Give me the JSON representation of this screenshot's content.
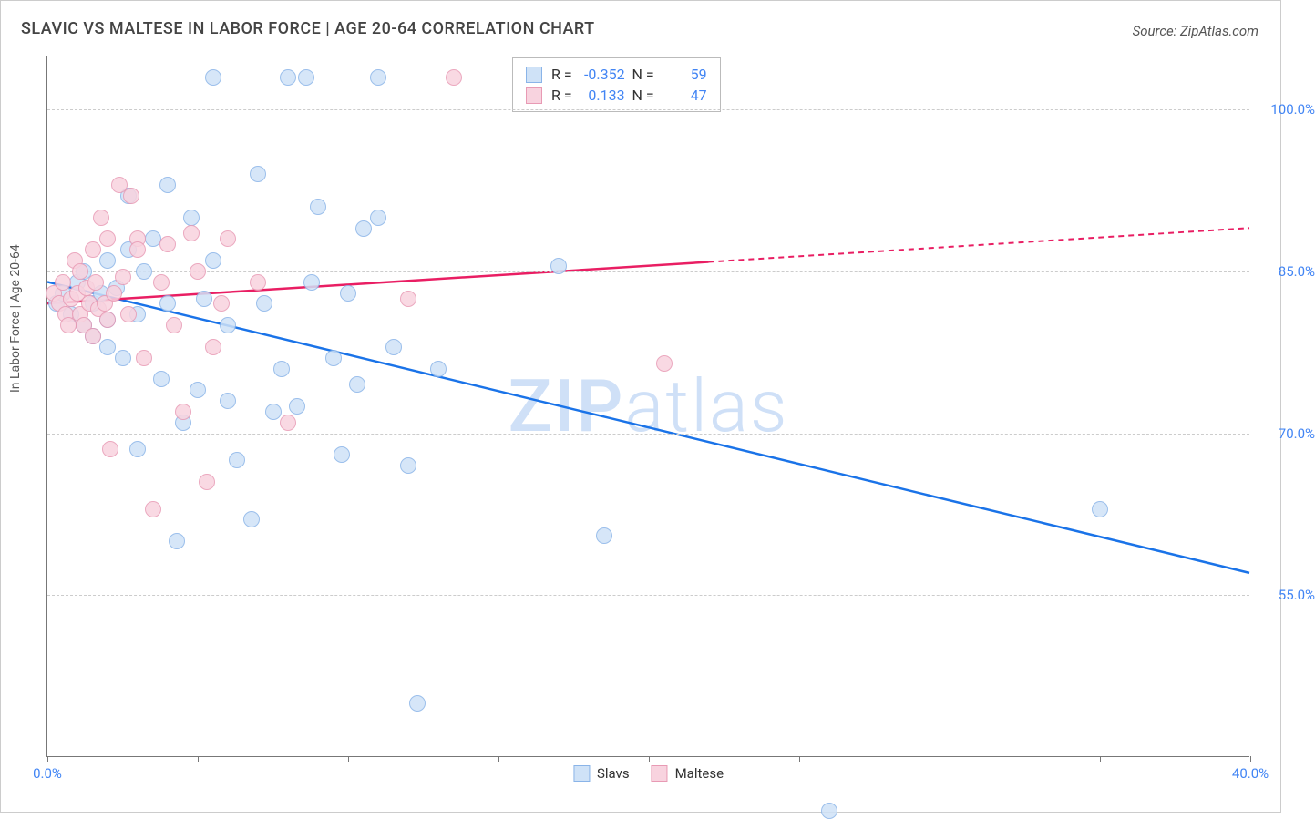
{
  "title": "SLAVIC VS MALTESE IN LABOR FORCE | AGE 20-64 CORRELATION CHART",
  "source": "Source: ZipAtlas.com",
  "y_axis_label": "In Labor Force | Age 20-64",
  "watermark_a": "ZIP",
  "watermark_b": "atlas",
  "chart": {
    "type": "scatter",
    "x_range": [
      0,
      40
    ],
    "y_range": [
      40,
      105
    ],
    "y_ticks": [
      55,
      70,
      85,
      100
    ],
    "y_tick_labels": [
      "55.0%",
      "70.0%",
      "85.0%",
      "100.0%"
    ],
    "x_ticks": [
      0,
      5,
      10,
      15,
      20,
      25,
      30,
      35,
      40
    ],
    "x_tick_labels": {
      "0": "0.0%",
      "40": "40.0%"
    },
    "point_radius": 9,
    "slav_fill": "#cfe2f7",
    "slav_stroke": "#8ab4e8",
    "maltese_fill": "#f8d3df",
    "maltese_stroke": "#e89ab4",
    "slav_line_color": "#1a73e8",
    "maltese_line_color": "#e91e63",
    "grid_color": "#d0d0d0",
    "background": "#ffffff",
    "series": [
      {
        "name": "Slavs",
        "color_key": "slav",
        "r_value": "-0.352",
        "n_value": "59",
        "trend": {
          "x1": 0,
          "y1": 84,
          "x2": 40,
          "y2": 57,
          "solid_until_x": 40
        },
        "points": [
          [
            0.3,
            82
          ],
          [
            0.5,
            83
          ],
          [
            0.8,
            81
          ],
          [
            1.0,
            84
          ],
          [
            1.2,
            80
          ],
          [
            1.2,
            85
          ],
          [
            1.5,
            82
          ],
          [
            1.5,
            79
          ],
          [
            1.8,
            83
          ],
          [
            2.0,
            86
          ],
          [
            2.0,
            78
          ],
          [
            2.0,
            80.5
          ],
          [
            2.3,
            83.5
          ],
          [
            2.5,
            77
          ],
          [
            2.7,
            92
          ],
          [
            2.7,
            87
          ],
          [
            3.0,
            68.5
          ],
          [
            3.0,
            81
          ],
          [
            3.2,
            85
          ],
          [
            3.5,
            88
          ],
          [
            3.8,
            75
          ],
          [
            4.0,
            93
          ],
          [
            4.0,
            82
          ],
          [
            4.3,
            60
          ],
          [
            4.5,
            71
          ],
          [
            4.8,
            90
          ],
          [
            5.0,
            74
          ],
          [
            5.2,
            82.5
          ],
          [
            5.5,
            86
          ],
          [
            5.5,
            103
          ],
          [
            6.0,
            73
          ],
          [
            6.0,
            80
          ],
          [
            6.3,
            67.5
          ],
          [
            6.8,
            62
          ],
          [
            7.0,
            94
          ],
          [
            7.2,
            82
          ],
          [
            7.5,
            72
          ],
          [
            7.8,
            76
          ],
          [
            8.0,
            103
          ],
          [
            8.3,
            72.5
          ],
          [
            8.6,
            103
          ],
          [
            8.8,
            84
          ],
          [
            9.0,
            91
          ],
          [
            9.5,
            77
          ],
          [
            9.8,
            68
          ],
          [
            10.0,
            83
          ],
          [
            10.3,
            74.5
          ],
          [
            10.5,
            89
          ],
          [
            11.0,
            103
          ],
          [
            11.0,
            90
          ],
          [
            11.5,
            78
          ],
          [
            12.0,
            67
          ],
          [
            12.3,
            45
          ],
          [
            13.0,
            76
          ],
          [
            17.0,
            85.5
          ],
          [
            18.5,
            60.5
          ],
          [
            26.0,
            35
          ],
          [
            35.0,
            63
          ]
        ]
      },
      {
        "name": "Maltese",
        "color_key": "maltese",
        "r_value": "0.133",
        "n_value": "47",
        "trend": {
          "x1": 0,
          "y1": 82,
          "x2": 40,
          "y2": 89,
          "solid_until_x": 22
        },
        "points": [
          [
            0.2,
            83
          ],
          [
            0.4,
            82
          ],
          [
            0.5,
            84
          ],
          [
            0.6,
            81
          ],
          [
            0.7,
            80
          ],
          [
            0.8,
            82.5
          ],
          [
            0.9,
            86
          ],
          [
            1.0,
            83
          ],
          [
            1.1,
            81
          ],
          [
            1.1,
            85
          ],
          [
            1.2,
            80
          ],
          [
            1.3,
            83.5
          ],
          [
            1.4,
            82
          ],
          [
            1.5,
            87
          ],
          [
            1.5,
            79
          ],
          [
            1.6,
            84
          ],
          [
            1.7,
            81.5
          ],
          [
            1.8,
            90
          ],
          [
            1.9,
            82
          ],
          [
            2.0,
            88
          ],
          [
            2.0,
            80.5
          ],
          [
            2.1,
            68.5
          ],
          [
            2.2,
            83
          ],
          [
            2.4,
            93
          ],
          [
            2.5,
            84.5
          ],
          [
            2.7,
            81
          ],
          [
            2.8,
            92
          ],
          [
            3.0,
            88
          ],
          [
            3.0,
            87
          ],
          [
            3.2,
            77
          ],
          [
            3.5,
            63
          ],
          [
            3.8,
            84
          ],
          [
            4.0,
            87.5
          ],
          [
            4.2,
            80
          ],
          [
            4.5,
            72
          ],
          [
            4.8,
            88.5
          ],
          [
            5.0,
            85
          ],
          [
            5.3,
            65.5
          ],
          [
            5.5,
            78
          ],
          [
            5.8,
            82
          ],
          [
            6.0,
            88
          ],
          [
            7.0,
            84
          ],
          [
            8.0,
            71
          ],
          [
            12.0,
            82.5
          ],
          [
            13.5,
            103
          ],
          [
            20.5,
            76.5
          ]
        ]
      }
    ]
  },
  "bottom_legend": [
    {
      "label": "Slavs",
      "fill": "#cfe2f7",
      "stroke": "#8ab4e8"
    },
    {
      "label": "Maltese",
      "fill": "#f8d3df",
      "stroke": "#e89ab4"
    }
  ]
}
